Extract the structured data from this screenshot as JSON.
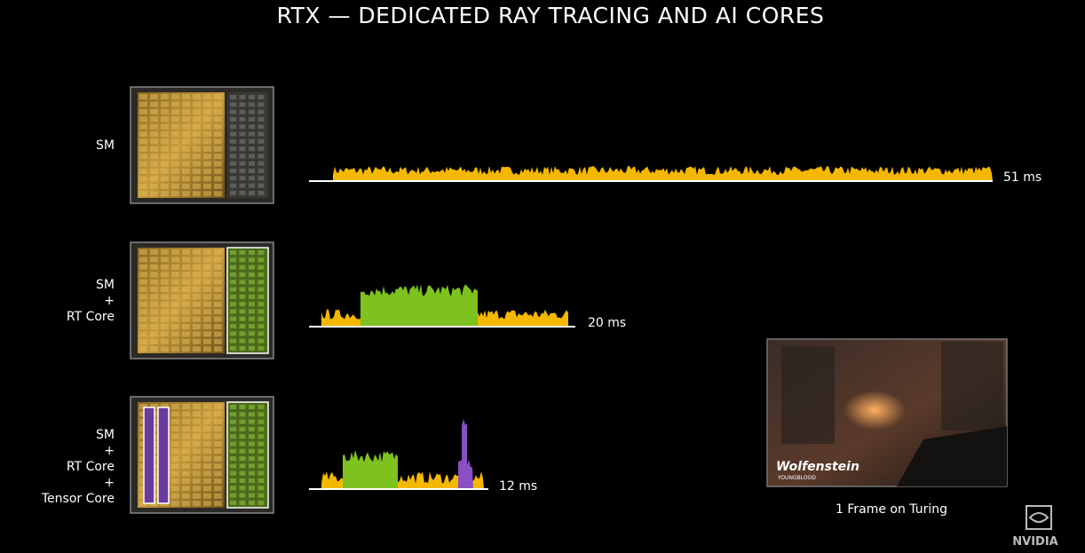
{
  "title": "RTX — DEDICATED RAY TRACING AND AI CORES",
  "rows": [
    {
      "label": [
        "SM"
      ],
      "time": "51 ms"
    },
    {
      "label": [
        "SM",
        "+",
        "RT Core"
      ],
      "time": "20 ms"
    },
    {
      "label": [
        "SM",
        "+",
        "RT Core",
        "+",
        "Tensor Core"
      ],
      "time": "12 ms"
    }
  ],
  "game": {
    "logo": "Wolfenstein",
    "sublogo": "YOUNGBLOOD",
    "caption": "1 Frame on Turing"
  },
  "brand": "NVIDIA"
}
